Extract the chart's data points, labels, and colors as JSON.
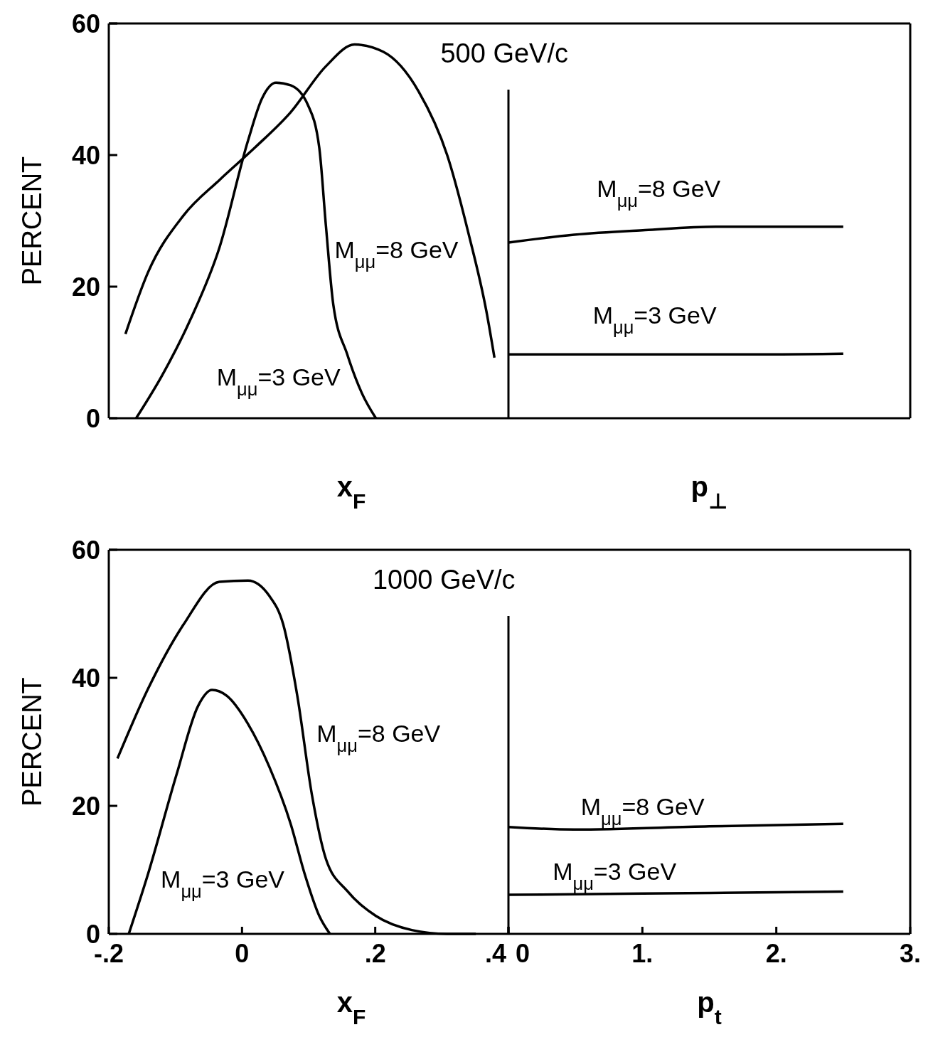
{
  "chart_data": [
    {
      "type": "line",
      "title": "500 GeV/c",
      "xlabel": "x$_{F}$",
      "ylabel": "PERCENT",
      "xlim": [
        -0.2,
        0.4
      ],
      "ylim": [
        0,
        60
      ],
      "yticks": [
        0,
        20,
        40,
        60
      ],
      "tick_labels": "y",
      "grid": false,
      "marker": "none",
      "line_style": "solid",
      "series": [
        {
          "name": "M$_{μμ}$=8 GeV",
          "color": "#000000",
          "x": [
            -0.175,
            -0.141,
            -0.088,
            -0.034,
            0.019,
            0.073,
            0.126,
            0.169,
            0.212,
            0.265,
            0.308,
            0.34,
            0.367,
            0.379
          ],
          "values": [
            12.8,
            22.2,
            30.8,
            36.2,
            41.1,
            46.5,
            53.5,
            56.8,
            55.7,
            49.7,
            40,
            28.1,
            16.2,
            9.2
          ]
        },
        {
          "name": "M$_{μμ}$=3 GeV",
          "color": "#000000",
          "x": [
            -0.159,
            -0.12,
            -0.077,
            -0.034,
            0.009,
            0.03,
            0.051,
            0.073,
            0.099,
            0.116,
            0.126,
            0.137,
            0.158,
            0.18,
            0.201
          ],
          "values": [
            0,
            6.5,
            15.1,
            25.9,
            42.2,
            48.6,
            51,
            50.6,
            47.6,
            41.1,
            29.2,
            17.3,
            9.7,
            3.8,
            0
          ]
        }
      ]
    },
    {
      "type": "line",
      "xlabel": "p$_{⊥}$",
      "xlim": [
        0,
        3
      ],
      "ylim": [
        0,
        60
      ],
      "tick_labels": false,
      "grid": false,
      "marker": "none",
      "line_style": "solid",
      "series": [
        {
          "name": "M$_{μμ}$=8 GeV",
          "color": "#000000",
          "x": [
            0,
            0.49,
            1.02,
            1.55,
            2.5
          ],
          "values": [
            26.7,
            27.9,
            28.6,
            29.1,
            29.1
          ]
        },
        {
          "name": "M$_{μμ}$=3 GeV",
          "color": "#000000",
          "x": [
            0,
            1,
            2,
            2.5
          ],
          "values": [
            9.7,
            9.7,
            9.7,
            9.8
          ]
        }
      ]
    },
    {
      "type": "line",
      "title": "1000 GeV/c",
      "xlabel": "x$_{F}$",
      "ylabel": "PERCENT",
      "xlim": [
        -0.2,
        0.4
      ],
      "xticks": [
        {
          "value": -0.2,
          "label": "-.2"
        },
        0,
        {
          "value": 0.2,
          "label": ".2"
        },
        {
          "value": 0.4,
          "label": ".4"
        }
      ],
      "ylim": [
        0,
        60
      ],
      "yticks": [
        0,
        20,
        40,
        60
      ],
      "grid": false,
      "marker": "none",
      "line_style": "solid",
      "series": [
        {
          "name": "M$_{μμ}$=8 GeV",
          "color": "#000000",
          "x": [
            -0.187,
            -0.141,
            -0.088,
            -0.034,
            0.009,
            0.041,
            0.062,
            0.083,
            0.105,
            0.126,
            0.158,
            0.201,
            0.255,
            0.308,
            0.351
          ],
          "values": [
            27.4,
            38.3,
            48.3,
            55,
            55.2,
            52.8,
            48.3,
            37.2,
            21.7,
            11.7,
            6.7,
            2.8,
            0.6,
            0,
            0
          ]
        },
        {
          "name": "M$_{μμ}$=3 GeV",
          "color": "#000000",
          "x": [
            -0.17,
            -0.141,
            -0.098,
            -0.066,
            -0.045,
            -0.023,
            0.009,
            0.041,
            0.073,
            0.094,
            0.116,
            0.132
          ],
          "values": [
            0,
            9.4,
            25,
            35.6,
            38.1,
            37.2,
            32.8,
            26.1,
            17.2,
            9.4,
            2.8,
            0
          ]
        }
      ]
    },
    {
      "type": "line",
      "xlabel": "p$_{t}$",
      "xlim": [
        0,
        3
      ],
      "xticks": [
        0,
        {
          "value": 1,
          "label": "1."
        },
        {
          "value": 2,
          "label": "2."
        },
        {
          "value": 3,
          "label": "3."
        }
      ],
      "ylim": [
        0,
        60
      ],
      "tick_labels": "x",
      "grid": false,
      "marker": "none",
      "line_style": "solid",
      "series": [
        {
          "name": "M$_{μμ}$=8 GeV",
          "color": "#000000",
          "x": [
            0,
            0.49,
            1.5,
            2.5
          ],
          "values": [
            16.7,
            16.3,
            16.8,
            17.2
          ]
        },
        {
          "name": "M$_{μμ}$=3 GeV",
          "color": "#000000",
          "x": [
            0,
            1,
            2,
            2.5
          ],
          "values": [
            6.1,
            6.3,
            6.5,
            6.6
          ]
        }
      ]
    }
  ]
}
